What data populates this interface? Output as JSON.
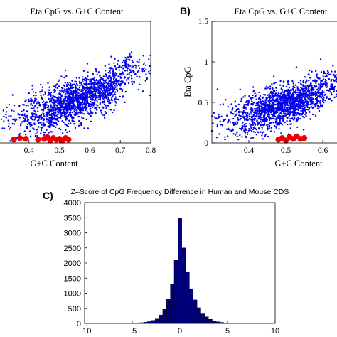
{
  "panels": {
    "a": {
      "title": "Eta CpG vs. G+C Content",
      "xlabel": "G+C Content",
      "xticks": [
        "0.4",
        "0.5",
        "0.6",
        "0.7",
        "0.8"
      ]
    },
    "b": {
      "panel_label": "B)",
      "title": "Eta CpG vs. G+C Content",
      "xlabel": "G+C Content",
      "ylabel": "Eta CpG",
      "xticks": [
        "0.4",
        "0.5",
        "0.6"
      ],
      "yticks": [
        "0",
        "0.5",
        "1",
        "1.5"
      ]
    },
    "c": {
      "panel_label": "C)",
      "title": "Z–Score of CpG Frequency Difference in Human and Mouse CDS",
      "xticks": [
        "−10",
        "−5",
        "0",
        "5",
        "10"
      ],
      "yticks": [
        "0",
        "500",
        "1000",
        "1500",
        "2000",
        "2500",
        "3000",
        "3500",
        "4000"
      ]
    }
  },
  "colors": {
    "scatter": "#0000ee",
    "highlight": "#ee0000",
    "bars": "#00007a"
  },
  "chart_data": [
    {
      "type": "scatter",
      "title": "Eta CpG vs. G+C Content",
      "xlabel": "G+C Content",
      "xlim": [
        0.3,
        0.8
      ],
      "ylim": [
        0,
        1.5
      ],
      "series": [
        {
          "description_of_cloud": "dense blue cloud",
          "values": [
            [
              0.38,
              0.3
            ],
            [
              0.45,
              0.38
            ],
            [
              0.5,
              0.45
            ],
            [
              0.55,
              0.5
            ],
            [
              0.6,
              0.58
            ],
            [
              0.65,
              0.65
            ],
            [
              0.7,
              0.78
            ],
            [
              0.75,
              0.92
            ]
          ]
        },
        {
          "highlight": true,
          "values": [
            [
              0.35,
              0.04
            ],
            [
              0.37,
              0.06
            ],
            [
              0.39,
              0.05
            ],
            [
              0.43,
              0.04
            ],
            [
              0.45,
              0.05
            ],
            [
              0.46,
              0.07
            ],
            [
              0.47,
              0.03
            ],
            [
              0.48,
              0.06
            ],
            [
              0.49,
              0.04
            ],
            [
              0.5,
              0.05
            ],
            [
              0.51,
              0.03
            ],
            [
              0.52,
              0.06
            ],
            [
              0.53,
              0.04
            ]
          ]
        }
      ]
    },
    {
      "type": "scatter",
      "title": "Eta CpG vs. G+C Content",
      "xlabel": "G+C Content",
      "ylabel": "Eta CpG",
      "xlim": [
        0.3,
        0.65
      ],
      "ylim": [
        0,
        1.5
      ],
      "series": [
        {
          "values": [
            [
              0.36,
              0.28
            ],
            [
              0.42,
              0.36
            ],
            [
              0.48,
              0.44
            ],
            [
              0.54,
              0.52
            ],
            [
              0.58,
              0.6
            ],
            [
              0.62,
              0.7
            ],
            [
              0.64,
              0.8
            ]
          ]
        },
        {
          "highlight": true,
          "values": [
            [
              0.48,
              0.04
            ],
            [
              0.49,
              0.06
            ],
            [
              0.5,
              0.03
            ],
            [
              0.51,
              0.07
            ],
            [
              0.52,
              0.05
            ],
            [
              0.53,
              0.08
            ],
            [
              0.54,
              0.05
            ],
            [
              0.55,
              0.06
            ]
          ]
        }
      ]
    },
    {
      "type": "bar",
      "title": "Z–Score of CpG Frequency Difference in Human and Mouse CDS",
      "xlim": [
        -10,
        10
      ],
      "ylim": [
        0,
        4000
      ],
      "bin_width": 0.4,
      "bins": [
        [
          -4.8,
          10
        ],
        [
          -4.4,
          15
        ],
        [
          -4.0,
          25
        ],
        [
          -3.6,
          40
        ],
        [
          -3.2,
          60
        ],
        [
          -2.8,
          100
        ],
        [
          -2.4,
          170
        ],
        [
          -2.0,
          280
        ],
        [
          -1.6,
          480
        ],
        [
          -1.2,
          800
        ],
        [
          -0.8,
          1300
        ],
        [
          -0.4,
          2100
        ],
        [
          0.0,
          3480
        ],
        [
          0.4,
          2500
        ],
        [
          0.8,
          1700
        ],
        [
          1.2,
          1150
        ],
        [
          1.6,
          780
        ],
        [
          2.0,
          520
        ],
        [
          2.4,
          340
        ],
        [
          2.8,
          220
        ],
        [
          3.2,
          140
        ],
        [
          3.6,
          90
        ],
        [
          4.0,
          55
        ],
        [
          4.4,
          35
        ],
        [
          4.8,
          20
        ],
        [
          5.2,
          12
        ]
      ]
    }
  ]
}
